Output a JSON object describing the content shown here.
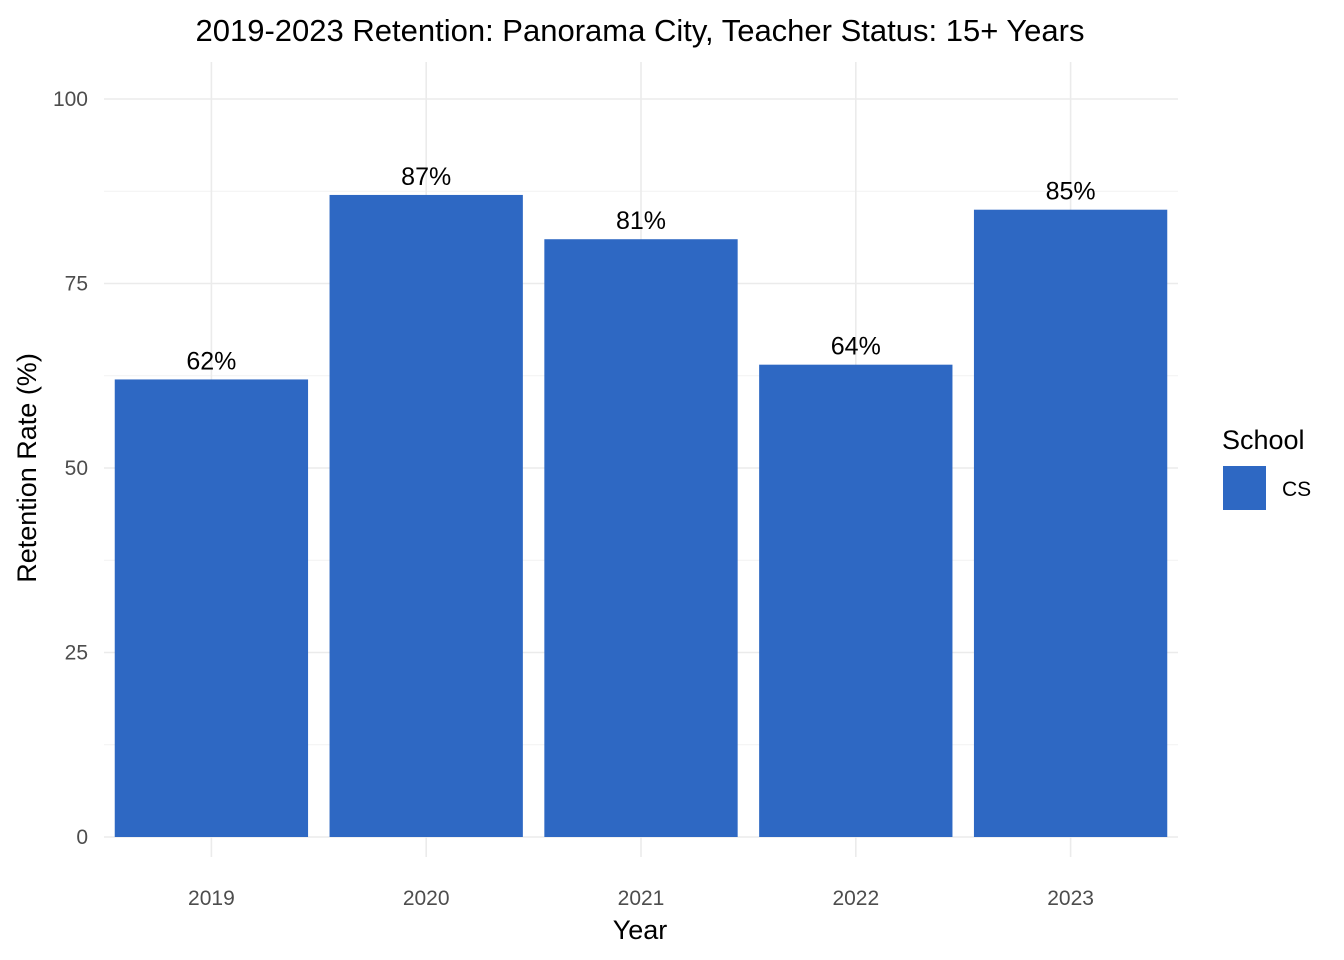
{
  "chart_data": {
    "type": "bar",
    "title": "2019-2023 Retention: Panorama City, Teacher Status: 15+ Years",
    "xlabel": "Year",
    "ylabel": "Retention Rate (%)",
    "categories": [
      "2019",
      "2020",
      "2021",
      "2022",
      "2023"
    ],
    "series": [
      {
        "name": "CS",
        "values": [
          62,
          87,
          81,
          64,
          85
        ],
        "color": "#2e68c3"
      }
    ],
    "data_labels": [
      "62%",
      "87%",
      "81%",
      "64%",
      "85%"
    ],
    "ylim": [
      0,
      100
    ],
    "yticks": [
      "0",
      "25",
      "50",
      "75",
      "100"
    ],
    "grid": true,
    "legend": {
      "title": "School",
      "placement": "right"
    }
  }
}
